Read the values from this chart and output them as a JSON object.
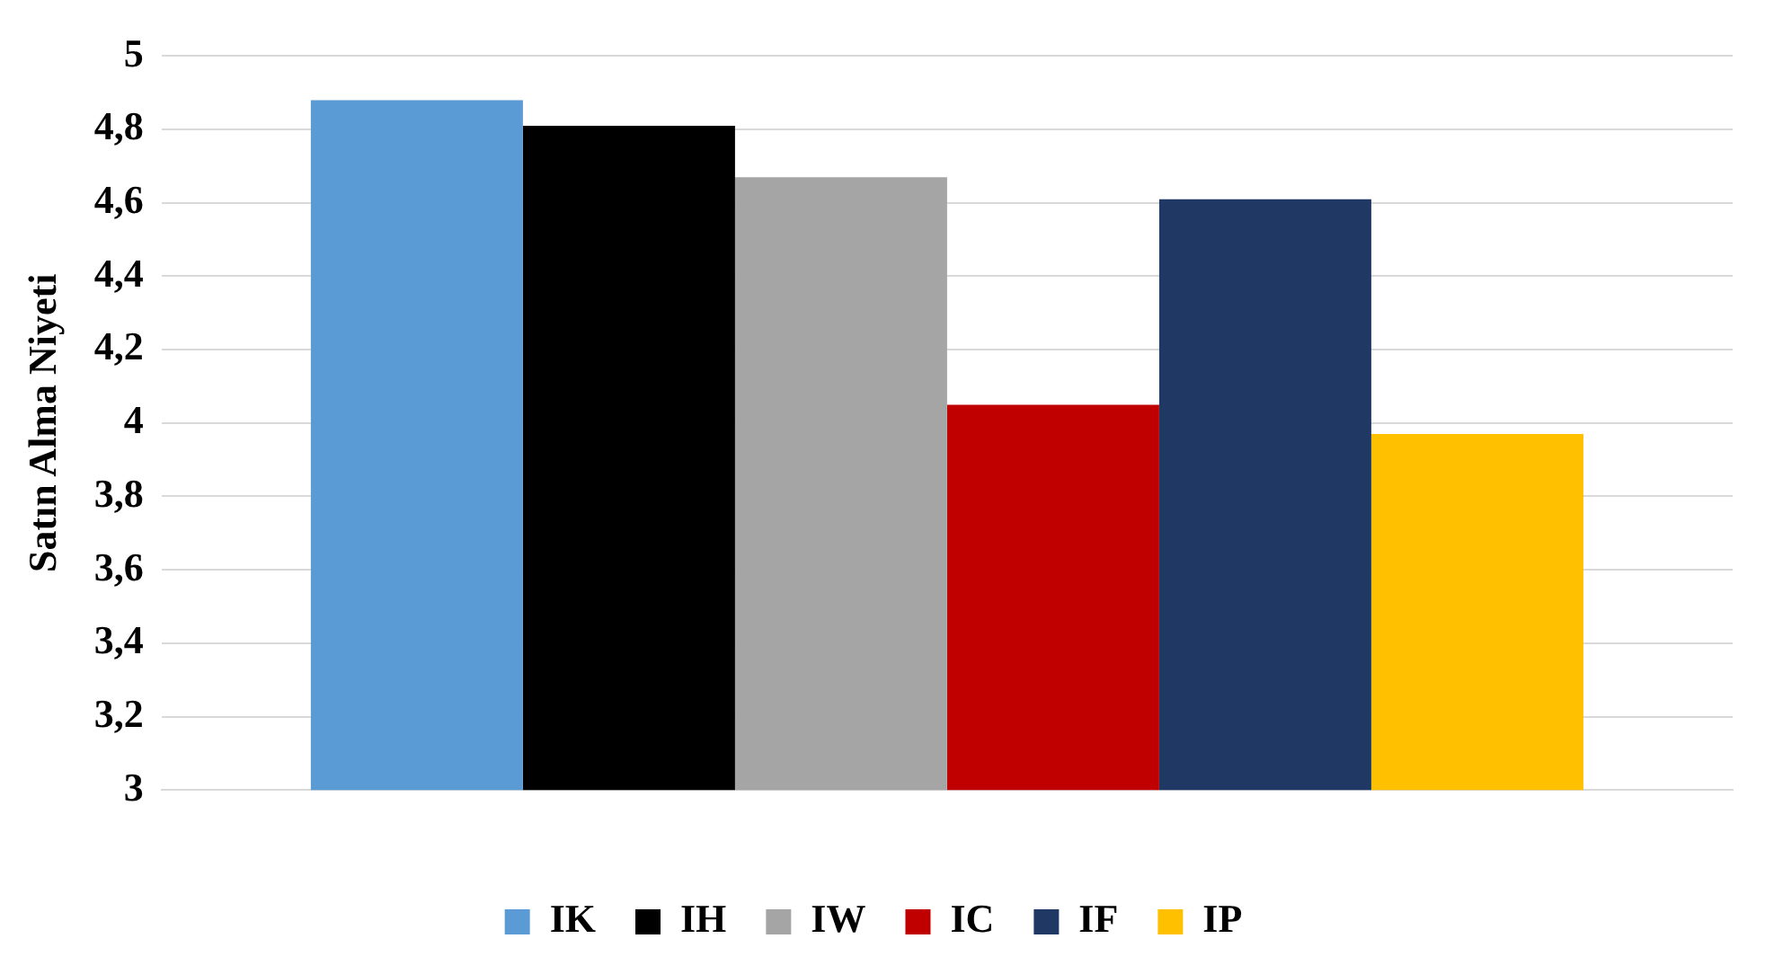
{
  "chart_data": {
    "type": "bar",
    "ylabel": "Satın Alma Niyeti",
    "categories": [
      null
    ],
    "series": [
      {
        "name": "IK",
        "color": "#5b9bd5",
        "values": [
          4.88
        ]
      },
      {
        "name": "IH",
        "color": "#000000",
        "values": [
          4.81
        ]
      },
      {
        "name": "IW",
        "color": "#a5a5a5",
        "values": [
          4.67
        ]
      },
      {
        "name": "IC",
        "color": "#c00000",
        "values": [
          4.05
        ]
      },
      {
        "name": "IF",
        "color": "#1f3864",
        "values": [
          4.61
        ]
      },
      {
        "name": "IP",
        "color": "#ffc000",
        "values": [
          3.97
        ]
      }
    ],
    "ylim": [
      3,
      5
    ],
    "yticks": [
      3,
      {
        "value": 3.2,
        "label": "3,2"
      },
      {
        "value": 3.4,
        "label": "3,4"
      },
      {
        "value": 3.6,
        "label": "3,6"
      },
      {
        "value": 3.8,
        "label": "3,8"
      },
      4,
      {
        "value": 4.2,
        "label": "4,2"
      },
      {
        "value": 4.4,
        "label": "4,4"
      },
      {
        "value": 4.6,
        "label": "4,6"
      },
      {
        "value": 4.8,
        "label": "4,8"
      },
      5
    ],
    "grid": "y",
    "legend": "bottom"
  }
}
